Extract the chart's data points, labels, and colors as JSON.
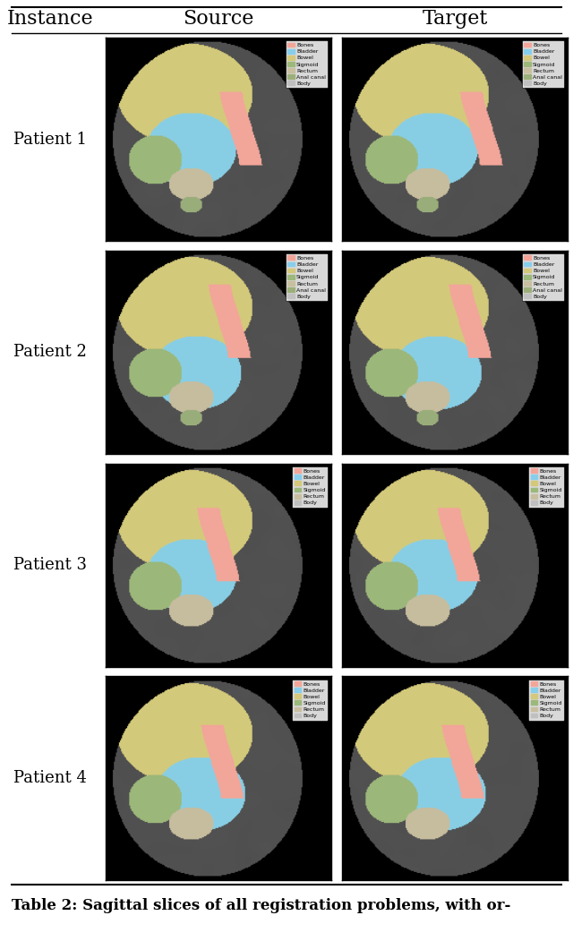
{
  "title": "",
  "header": [
    "Instance",
    "Source",
    "Target"
  ],
  "row_labels": [
    "Patient 1",
    "Patient 2",
    "Patient 3",
    "Patient 4"
  ],
  "legend_labels": {
    "patients_1_2": [
      "Bones",
      "Bladder",
      "Bowel",
      "Sigmoid",
      "Rectum",
      "Anal canal",
      "Body"
    ],
    "patients_3_4": [
      "Bones",
      "Bladder",
      "Bowel",
      "Sigmoid",
      "Rectum",
      "Body"
    ]
  },
  "legend_colors": [
    "#F4A59A",
    "#87CEEB",
    "#D4C87A",
    "#9DB87A",
    "#C8BFA0",
    "#9CAF7A",
    "#C8C8C8"
  ],
  "legend_colors_34": [
    "#F4A59A",
    "#87CEEB",
    "#D4C87A",
    "#9DB87A",
    "#C8BFA0",
    "#C8C8C8"
  ],
  "caption": "Table 2: Sagittal slices of all registration problems, with or-",
  "background_color": "#ffffff",
  "border_color": "#000000",
  "header_fontsize": 16,
  "label_fontsize": 13,
  "caption_fontsize": 12,
  "fig_width": 6.4,
  "fig_height": 10.51
}
